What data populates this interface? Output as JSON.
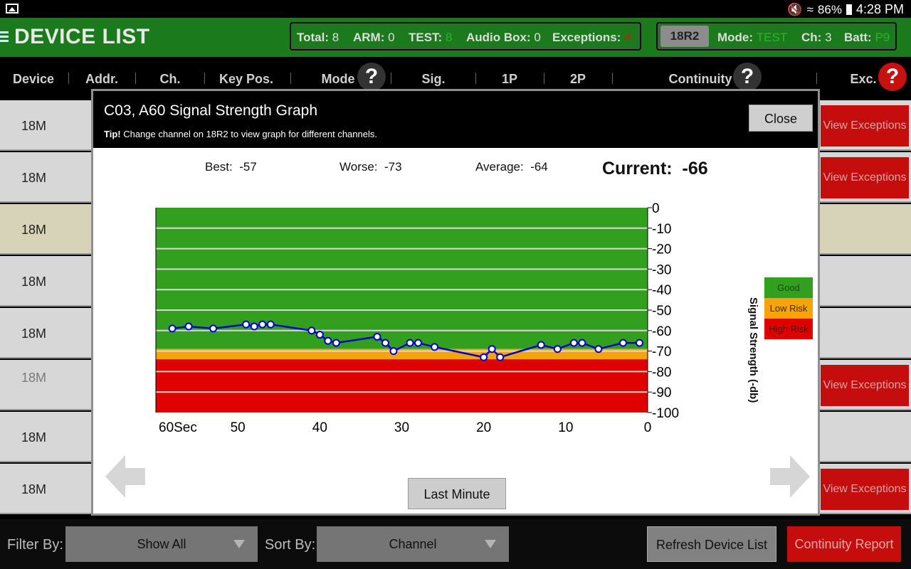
{
  "status_bar": {
    "battery_pct": "86%",
    "time": "4:28 PM",
    "icons": [
      "gallery-icon",
      "mute-icon",
      "wifi-icon",
      "battery-icon"
    ]
  },
  "app_bar": {
    "title": "DEVICE LIST",
    "stats": {
      "total_label": "Total:",
      "total": "8",
      "arm_label": "ARM:",
      "arm": "0",
      "test_label": "TEST:",
      "test": "8",
      "audio_label": "Audio Box:",
      "audio": "0",
      "exc_label": "Exceptions:",
      "exc": "4"
    },
    "device": {
      "name": "18R2",
      "mode_label": "Mode:",
      "mode": "TEST",
      "ch_label": "Ch:",
      "ch": "3",
      "batt_label": "Batt:",
      "batt": "P9"
    }
  },
  "columns": [
    "Device",
    "Addr.",
    "Ch.",
    "Key Pos.",
    "Mode",
    "Sig.",
    "1P",
    "2P",
    "Continuity",
    "Exc."
  ],
  "help_glyph": "?",
  "rows": [
    {
      "device": "18M",
      "exc": "View Exceptions"
    },
    {
      "device": "18M",
      "exc": "View Exceptions"
    },
    {
      "device": "18M",
      "exc": ""
    },
    {
      "device": "18M",
      "exc": ""
    },
    {
      "device": "18M",
      "exc": ""
    },
    {
      "device": "18M",
      "exc": "View Exceptions"
    },
    {
      "device": "18M",
      "exc": ""
    },
    {
      "device": "18M",
      "exc": "View Exceptions"
    }
  ],
  "bottom_bar": {
    "filter_label": "Filter By:",
    "filter_value": "Show All",
    "sort_label": "Sort By:",
    "sort_value": "Channel",
    "refresh": "Refresh Device List",
    "continuity": "Continuity Report"
  },
  "modal": {
    "title": "C03, A60 Signal Strength Graph",
    "tip_bold": "Tip!",
    "tip_text": " Change channel on 18R2 to view graph for different channels.",
    "close": "Close",
    "best_label": "Best:",
    "best": "-57",
    "worse_label": "Worse:",
    "worse": "-73",
    "avg_label": "Average:",
    "avg": "-64",
    "current_label": "Current:",
    "current": "-66",
    "last_minute": "Last Minute",
    "legend": {
      "good": "Good",
      "low": "Low Risk",
      "high": "High Risk"
    },
    "colors": {
      "good": "#32a01e",
      "low": "#f7a30a",
      "high": "#df0000",
      "line": "#0000cc"
    }
  },
  "chart_data": {
    "type": "line",
    "ylabel": "Signal Strength (-db)",
    "xlim": [
      60,
      0
    ],
    "ylim": [
      -100,
      0
    ],
    "x_ticks": [
      "60Sec",
      "50",
      "40",
      "30",
      "20",
      "10",
      "0"
    ],
    "y_ticks": [
      "0",
      "-10",
      "-20",
      "-30",
      "-40",
      "-50",
      "-60",
      "-70",
      "-80",
      "-90",
      "-100"
    ],
    "bands": [
      {
        "name": "Good",
        "from": -69,
        "to": 0
      },
      {
        "name": "Low Risk",
        "from": -74,
        "to": -69
      },
      {
        "name": "High Risk",
        "from": -100,
        "to": -74
      }
    ],
    "series": [
      {
        "x": [
          58,
          56,
          53,
          49,
          48,
          47,
          46,
          41,
          40,
          39,
          38,
          33,
          32,
          31,
          29,
          28,
          26,
          20,
          19,
          18,
          13,
          11,
          9,
          8,
          6,
          3,
          1
        ],
        "y": [
          -59,
          -58,
          -59,
          -57,
          -58,
          -57,
          -57,
          -60,
          -62,
          -65,
          -66,
          -63,
          -66,
          -70,
          -66,
          -66,
          -68,
          -73,
          -69,
          -73,
          -67,
          -69,
          -66,
          -66,
          -69,
          -66,
          -66
        ]
      }
    ]
  }
}
